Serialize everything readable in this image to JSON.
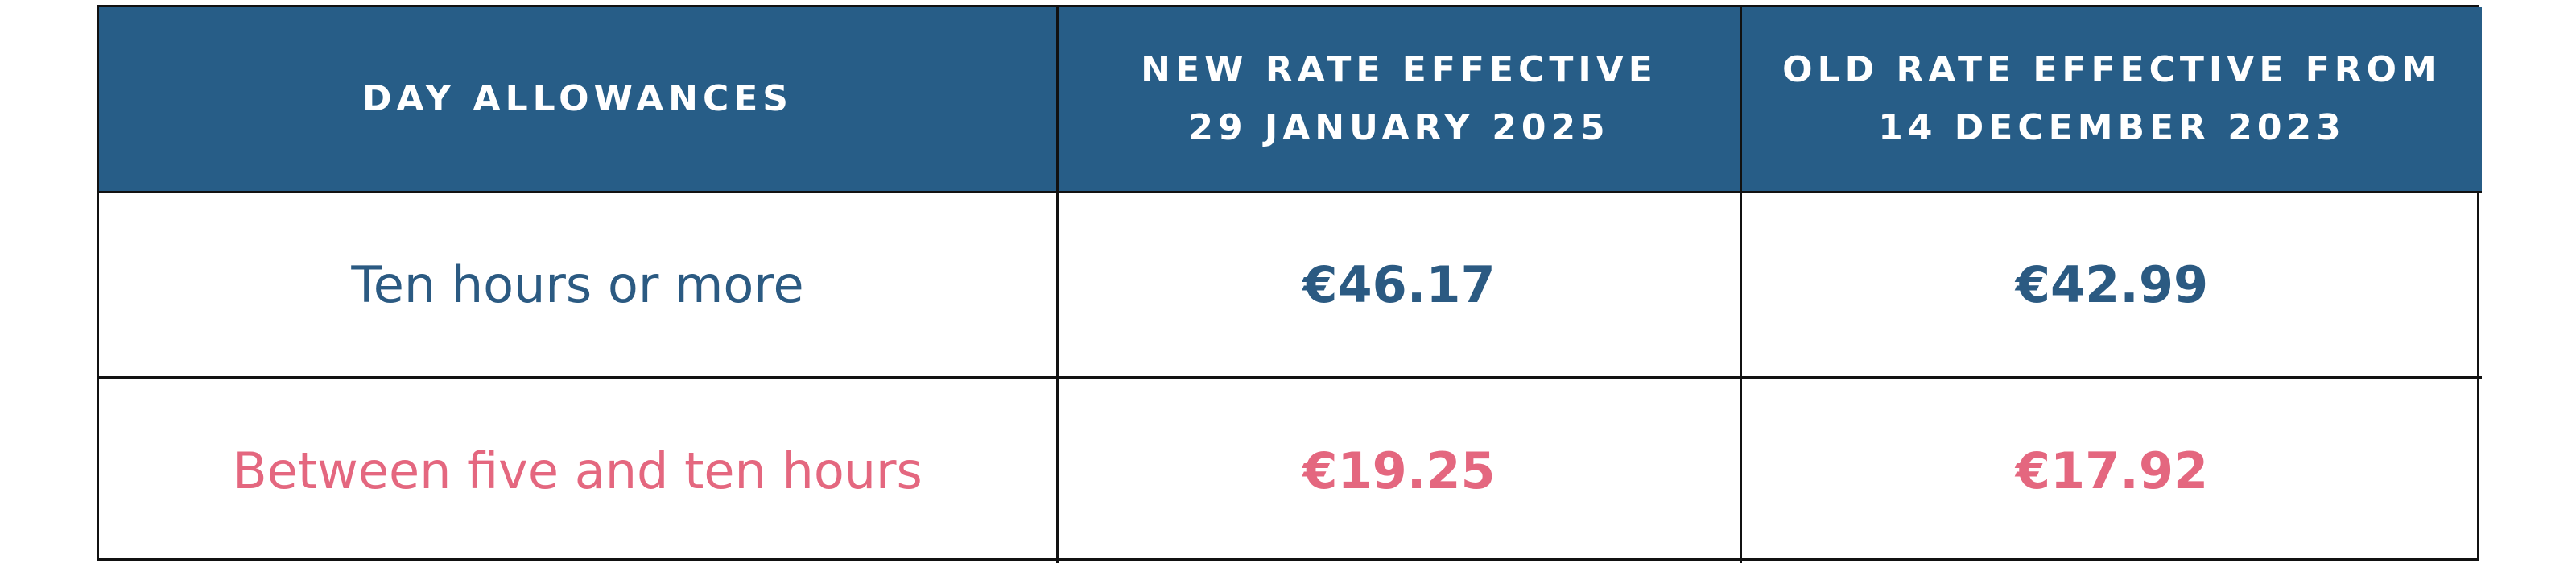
{
  "table": {
    "header": [
      [
        "DAY ALLOWANCES"
      ],
      [
        "NEW RATE EFFECTIVE",
        "29 JANUARY 2025"
      ],
      [
        "OLD RATE EFFECTIVE FROM",
        "14 DECEMBER 2023"
      ]
    ],
    "rows": [
      [
        "Ten hours or more",
        "€46.17",
        "€42.99"
      ],
      [
        "Between five and ten hours",
        "€19.25",
        "€17.92"
      ]
    ]
  }
}
